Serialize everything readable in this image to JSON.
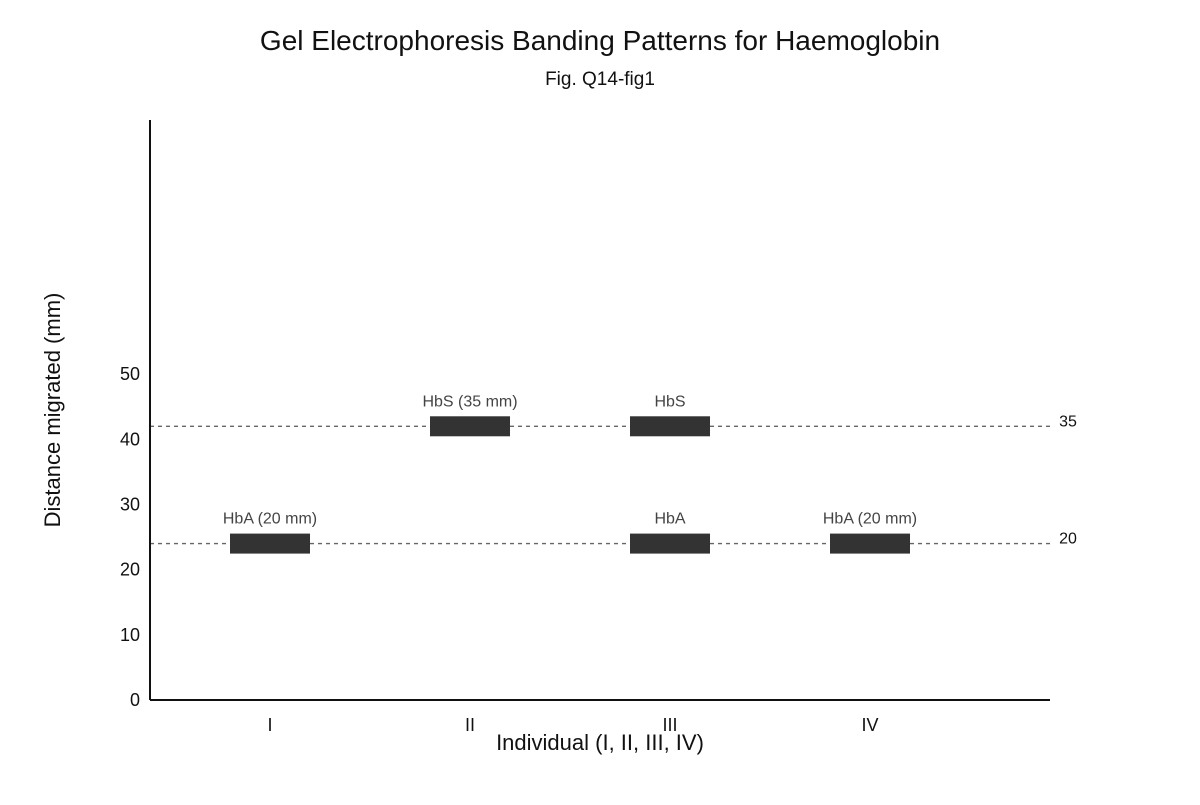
{
  "chart_data": {
    "type": "bar",
    "title": "Gel Electrophoresis Banding Patterns for Haemoglobin",
    "subtitle": "Fig. Q14-fig1",
    "xlabel": "Individual (I, II, III, IV)",
    "ylabel": "Distance migrated (mm)",
    "categories": [
      "I",
      "II",
      "III",
      "IV"
    ],
    "ylim": [
      0,
      89
    ],
    "yticks": [
      0,
      10,
      20,
      30,
      40,
      50
    ],
    "grid": false,
    "legend": "none",
    "reference_lines": [
      {
        "value": 20,
        "label": "20",
        "style": "dashed"
      },
      {
        "value": 35,
        "label": "35",
        "style": "dashed"
      }
    ],
    "bands": [
      {
        "individual": "I",
        "protein": "HbA",
        "distance_mm": 20,
        "label": "HbA (20 mm)"
      },
      {
        "individual": "II",
        "protein": "HbS",
        "distance_mm": 35,
        "label": "HbS (35 mm)"
      },
      {
        "individual": "III",
        "protein": "HbS",
        "distance_mm": 35,
        "label": "HbS"
      },
      {
        "individual": "III",
        "protein": "HbA",
        "distance_mm": 20,
        "label": "HbA"
      },
      {
        "individual": "IV",
        "protein": "HbA",
        "distance_mm": 20,
        "label": "HbA (20 mm)"
      }
    ],
    "colors": {
      "band": "#333333",
      "axis": "#111111",
      "reference_line": "#666666",
      "band_label": "#444444"
    }
  }
}
